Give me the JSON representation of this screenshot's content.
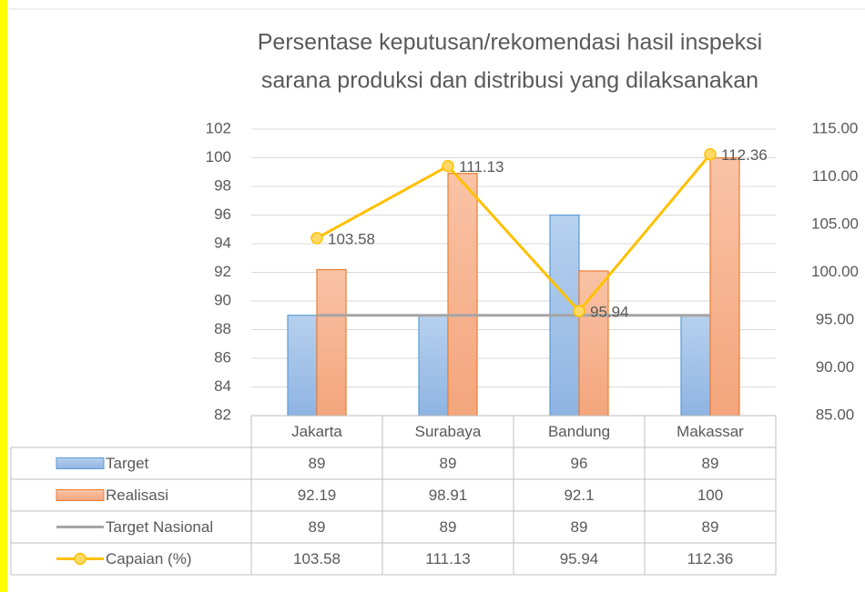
{
  "chart_data": {
    "type": "bar",
    "title": [
      "Persentase keputusan/rekomendasi hasil inspeksi",
      "sarana produksi dan distribusi yang dilaksanakan"
    ],
    "categories": [
      "Jakarta",
      "Surabaya",
      "Bandung",
      "Makassar"
    ],
    "series": [
      {
        "name": "Target",
        "type": "bar",
        "color": "#5b9bd5",
        "fill": "#a9c8ea",
        "values": [
          89,
          89,
          96,
          89
        ]
      },
      {
        "name": "Realisasi",
        "type": "bar",
        "color": "#ed7d31",
        "fill": "#f7b896",
        "values": [
          92.19,
          98.91,
          92.1,
          100
        ]
      },
      {
        "name": "Target Nasional",
        "type": "line",
        "color": "#a5a5a5",
        "values": [
          89,
          89,
          89,
          89
        ]
      },
      {
        "name": "Capaian (%)",
        "type": "line",
        "axis": "y2",
        "marker": true,
        "data_labels": true,
        "color": "#ffc000",
        "values": [
          103.58,
          111.13,
          95.94,
          112.36
        ]
      }
    ],
    "ylim": [
      82,
      102
    ],
    "yticks": [
      82,
      84,
      86,
      88,
      90,
      92,
      94,
      96,
      98,
      100,
      102
    ],
    "y2lim": [
      85,
      115
    ],
    "y2ticks": [
      {
        "value": 85,
        "label": "85.00"
      },
      {
        "value": 90,
        "label": "90.00"
      },
      {
        "value": 95,
        "label": "95.00"
      },
      {
        "value": 100,
        "label": "100.00"
      },
      {
        "value": 105,
        "label": "105.00"
      },
      {
        "value": 110,
        "label": "110.00"
      },
      {
        "value": 115,
        "label": "115.00"
      }
    ],
    "grid": true,
    "data_table": true
  }
}
